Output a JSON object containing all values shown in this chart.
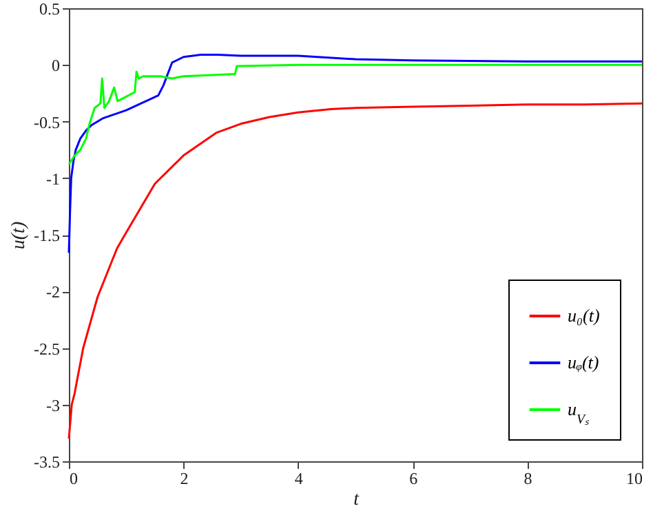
{
  "chart_data": {
    "type": "line",
    "xlabel": "t",
    "ylabel": "u(t)",
    "xlim": [
      0,
      10
    ],
    "ylim": [
      -3.5,
      0.5
    ],
    "xticks": [
      0,
      2,
      4,
      6,
      8,
      10
    ],
    "yticks": [
      -3.5,
      -3,
      -2.5,
      -2,
      -1.5,
      -1,
      -0.5,
      0,
      0.5
    ],
    "grid": false,
    "legend": "bottom right",
    "marker": "none",
    "line_style": "solid",
    "series": [
      {
        "name": "u₀(t)",
        "color": "#ff0000",
        "x": [
          0,
          0.05,
          0.1,
          0.25,
          0.5,
          0.65,
          0.84,
          1,
          1.5,
          2,
          2.57,
          3,
          3.5,
          4,
          4.57,
          5,
          6,
          7,
          8,
          9,
          10
        ],
        "values": [
          -3.3,
          -3.0,
          -2.9,
          -2.5,
          -2.05,
          -1.86,
          -1.62,
          -1.48,
          -1.05,
          -0.8,
          -0.6,
          -0.52,
          -0.46,
          -0.42,
          -0.39,
          -0.38,
          -0.37,
          -0.36,
          -0.35,
          -0.35,
          -0.34
        ]
      },
      {
        "name": "uᵩ(t)",
        "color": "#0000ff",
        "x": [
          0,
          0.02,
          0.04,
          0.08,
          0.12,
          0.2,
          0.3,
          0.4,
          0.6,
          1.0,
          1.3,
          1.56,
          1.65,
          1.8,
          2.0,
          2.3,
          2.6,
          3,
          4,
          5,
          6,
          8,
          10
        ],
        "values": [
          -1.66,
          -1.3,
          -1.0,
          -0.85,
          -0.75,
          -0.65,
          -0.58,
          -0.53,
          -0.47,
          -0.4,
          -0.33,
          -0.27,
          -0.18,
          0.02,
          0.07,
          0.09,
          0.09,
          0.08,
          0.08,
          0.05,
          0.04,
          0.03,
          0.03
        ]
      },
      {
        "name": "u$_{Vₛ}$",
        "color": "#00ff00",
        "x": [
          0,
          0.1,
          0.2,
          0.3,
          0.36,
          0.45,
          0.55,
          0.58,
          0.62,
          0.7,
          0.79,
          0.85,
          1.0,
          1.15,
          1.18,
          1.22,
          1.3,
          1.6,
          1.8,
          2.0,
          2.5,
          2.9,
          2.93,
          4,
          6,
          8,
          10
        ],
        "values": [
          -0.88,
          -0.8,
          -0.75,
          -0.65,
          -0.52,
          -0.38,
          -0.34,
          -0.12,
          -0.38,
          -0.32,
          -0.2,
          -0.32,
          -0.28,
          -0.24,
          -0.06,
          -0.12,
          -0.1,
          -0.1,
          -0.12,
          -0.1,
          -0.09,
          -0.08,
          -0.01,
          0,
          0,
          0,
          0
        ]
      }
    ]
  }
}
